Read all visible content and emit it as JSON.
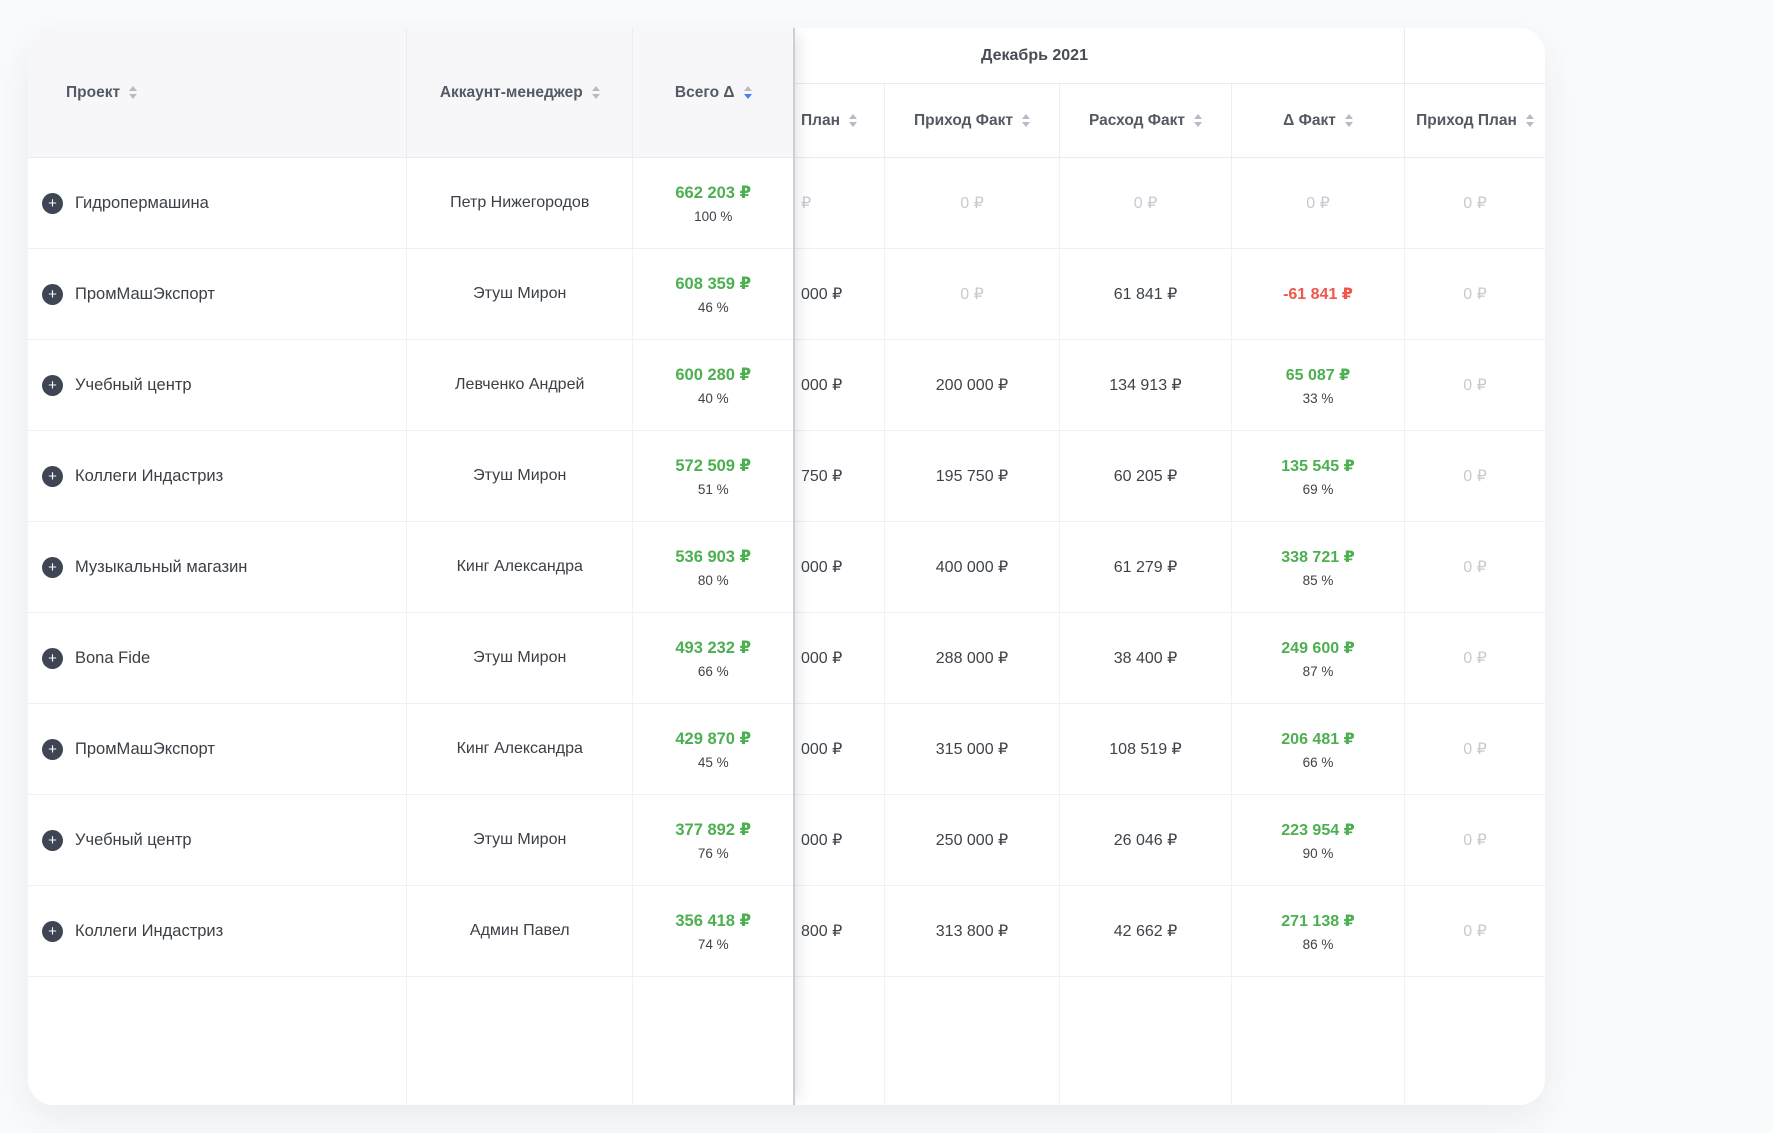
{
  "icons": {
    "expand": "+"
  },
  "colors": {
    "green": "#4caf50",
    "red": "#f0564c",
    "sort-active": "#4a7dfa",
    "muted": "#c7cad0"
  },
  "table": {
    "month_label": "Декабрь 2021",
    "frozen_columns": [
      {
        "label": "Проект",
        "sort": "none"
      },
      {
        "label": "Аккаунт-менеджер",
        "sort": "none"
      },
      {
        "label": "Всего Δ",
        "sort": "desc"
      }
    ],
    "scroll_columns": [
      {
        "label": "План",
        "sort": "none"
      },
      {
        "label": "Приход Факт",
        "sort": "none"
      },
      {
        "label": "Расход Факт",
        "sort": "none"
      },
      {
        "label": "Δ Факт",
        "sort": "none"
      },
      {
        "label": "Приход План",
        "sort": "none"
      }
    ],
    "rows": [
      {
        "project": "Гидропермашина",
        "manager": "Петр Нижегородов",
        "total_value": "662 203 ₽",
        "total_pct": "100 %",
        "plan": "₽",
        "income_fact": "0 ₽",
        "expense_fact": "0 ₽",
        "delta_value": "0 ₽",
        "delta_pct": "",
        "income_plan": "0 ₽",
        "tones": {
          "plan": "muted",
          "income_fact": "muted",
          "expense_fact": "muted",
          "delta": "muted",
          "income_plan": "muted"
        }
      },
      {
        "project": "ПромМашЭкспорт",
        "manager": "Этуш Мирон",
        "total_value": "608 359 ₽",
        "total_pct": "46 %",
        "plan": "000 ₽",
        "income_fact": "0 ₽",
        "expense_fact": "61 841 ₽",
        "delta_value": "-61 841 ₽",
        "delta_pct": "",
        "income_plan": "0 ₽",
        "tones": {
          "income_fact": "muted",
          "delta": "red",
          "income_plan": "muted"
        }
      },
      {
        "project": "Учебный центр",
        "manager": "Левченко Андрей",
        "total_value": "600 280 ₽",
        "total_pct": "40 %",
        "plan": "000 ₽",
        "income_fact": "200 000 ₽",
        "expense_fact": "134 913 ₽",
        "delta_value": "65 087 ₽",
        "delta_pct": "33 %",
        "income_plan": "0 ₽",
        "tones": {
          "delta": "green",
          "income_plan": "muted"
        }
      },
      {
        "project": "Коллеги Индастриз",
        "manager": "Этуш Мирон",
        "total_value": "572 509 ₽",
        "total_pct": "51 %",
        "plan": "750 ₽",
        "income_fact": "195 750 ₽",
        "expense_fact": "60 205 ₽",
        "delta_value": "135 545 ₽",
        "delta_pct": "69 %",
        "income_plan": "0 ₽",
        "tones": {
          "delta": "green",
          "income_plan": "muted"
        }
      },
      {
        "project": "Музыкальный магазин",
        "manager": "Кинг Александра",
        "total_value": "536 903 ₽",
        "total_pct": "80 %",
        "plan": "000 ₽",
        "income_fact": "400 000 ₽",
        "expense_fact": "61 279 ₽",
        "delta_value": "338 721 ₽",
        "delta_pct": "85 %",
        "income_plan": "0 ₽",
        "tones": {
          "delta": "green",
          "income_plan": "muted"
        }
      },
      {
        "project": "Bona Fide",
        "manager": "Этуш Мирон",
        "total_value": "493 232 ₽",
        "total_pct": "66 %",
        "plan": "000 ₽",
        "income_fact": "288 000 ₽",
        "expense_fact": "38 400 ₽",
        "delta_value": "249 600 ₽",
        "delta_pct": "87 %",
        "income_plan": "0 ₽",
        "tones": {
          "delta": "green",
          "income_plan": "muted"
        }
      },
      {
        "project": "ПромМашЭкспорт",
        "manager": "Кинг Александра",
        "total_value": "429 870 ₽",
        "total_pct": "45 %",
        "plan": "000 ₽",
        "income_fact": "315 000 ₽",
        "expense_fact": "108 519 ₽",
        "delta_value": "206 481 ₽",
        "delta_pct": "66 %",
        "income_plan": "0 ₽",
        "tones": {
          "delta": "green",
          "income_plan": "muted"
        }
      },
      {
        "project": "Учебный центр",
        "manager": "Этуш Мирон",
        "total_value": "377 892 ₽",
        "total_pct": "76 %",
        "plan": "000 ₽",
        "income_fact": "250 000 ₽",
        "expense_fact": "26 046 ₽",
        "delta_value": "223 954 ₽",
        "delta_pct": "90 %",
        "income_plan": "0 ₽",
        "tones": {
          "delta": "green",
          "income_plan": "muted"
        }
      },
      {
        "project": "Коллеги Индастриз",
        "manager": "Админ Павел",
        "total_value": "356 418 ₽",
        "total_pct": "74 %",
        "plan": "800 ₽",
        "income_fact": "313 800 ₽",
        "expense_fact": "42 662 ₽",
        "delta_value": "271 138 ₽",
        "delta_pct": "86 %",
        "income_plan": "0 ₽",
        "tones": {
          "delta": "green",
          "income_plan": "muted"
        }
      }
    ]
  }
}
